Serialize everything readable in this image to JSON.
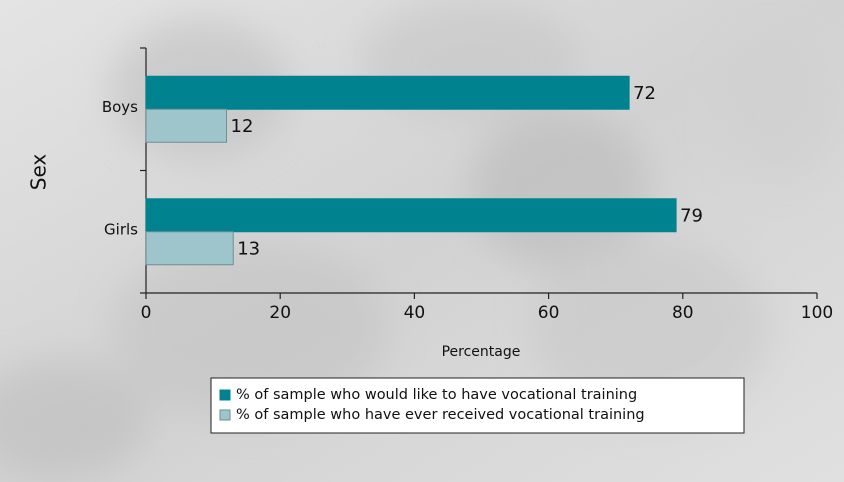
{
  "chart_data": {
    "type": "bar",
    "orientation": "horizontal",
    "categories": [
      "Boys",
      "Girls"
    ],
    "series": [
      {
        "name": "% of sample who would like to have vocational training",
        "color": "#00838f",
        "values": [
          72,
          79
        ]
      },
      {
        "name": "% of sample who have ever received vocational training",
        "color": "#9ec5cb",
        "values": [
          12,
          13
        ]
      }
    ],
    "xlim": [
      0,
      100
    ],
    "xticks": [
      0,
      20,
      40,
      60,
      80,
      100
    ],
    "xlabel": "Percentage",
    "ylabel": "Sex",
    "legend": "bottom"
  }
}
